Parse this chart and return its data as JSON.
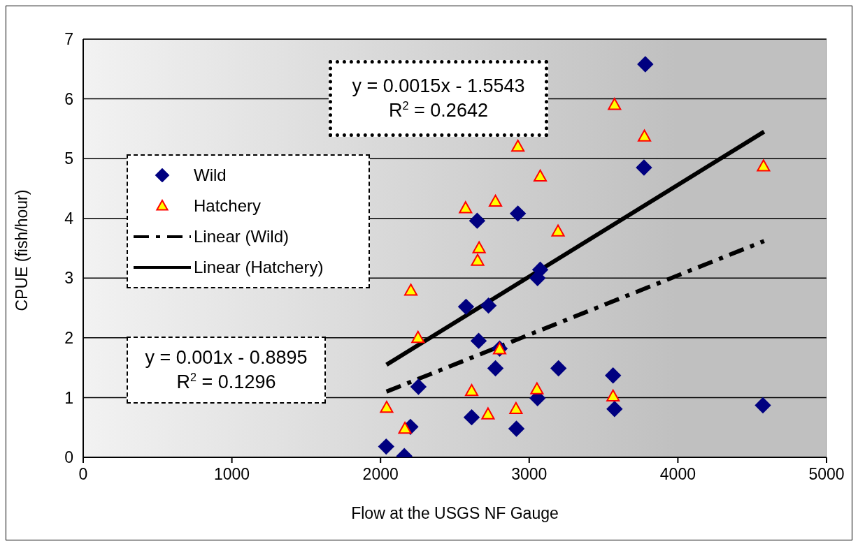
{
  "chart_data": {
    "type": "scatter",
    "xlabel": "Flow at the USGS NF Gauge",
    "ylabel": "CPUE (fish/hour)",
    "xlim": [
      0,
      5000
    ],
    "xticks": [
      0,
      1000,
      2000,
      3000,
      4000,
      5000
    ],
    "ylim": [
      0,
      7
    ],
    "yticks": [
      0,
      1,
      2,
      3,
      4,
      5,
      6,
      7
    ],
    "grid": "y",
    "legend": "left",
    "series": [
      {
        "name": "Wild",
        "color": "#000080",
        "marker": "diamond",
        "x": [
          2038,
          2160,
          2201,
          2255,
          2575,
          2726,
          2660,
          2801,
          2773,
          2613,
          2914,
          3056,
          3056,
          3074,
          3197,
          3564,
          3574,
          3781,
          3772,
          2650,
          2924,
          4572
        ],
        "values": [
          0.18,
          0.02,
          0.51,
          1.18,
          2.52,
          2.54,
          1.95,
          1.82,
          1.49,
          0.67,
          0.48,
          0.99,
          3.0,
          3.14,
          1.49,
          1.37,
          0.81,
          6.58,
          4.85,
          3.96,
          4.08,
          0.87
        ]
      },
      {
        "name": "Hatchery",
        "color": "#ffff00",
        "marker": "triangle",
        "x": [
          2041,
          2164,
          2204,
          2252,
          2613,
          2723,
          2801,
          2911,
          3052,
          3564,
          2572,
          2773,
          2663,
          2653,
          3194,
          3074,
          2924,
          3574,
          3775,
          4576
        ],
        "values": [
          0.83,
          0.48,
          2.79,
          2.0,
          1.11,
          0.72,
          1.81,
          0.81,
          1.14,
          1.02,
          4.17,
          4.28,
          3.5,
          3.29,
          3.78,
          4.7,
          5.2,
          5.9,
          5.37,
          4.87
        ]
      },
      {
        "name": "Linear (Wild)",
        "type": "line",
        "color": "#000000",
        "line_style": "dashed",
        "marker": "none",
        "x": [
          2040,
          4580
        ],
        "values": [
          1.1,
          3.62
        ]
      },
      {
        "name": "Linear (Hatchery)",
        "type": "line",
        "color": "#000000",
        "line_style": "solid",
        "marker": "none",
        "x": [
          2040,
          4580
        ],
        "values": [
          1.55,
          5.45
        ]
      }
    ],
    "annotations": [
      "y = 0.0015x - 1.5543",
      "R$^{2}$ = 0.2642",
      "y = 0.001x - 0.8895",
      "R$^{2}$ = 0.1296"
    ]
  }
}
